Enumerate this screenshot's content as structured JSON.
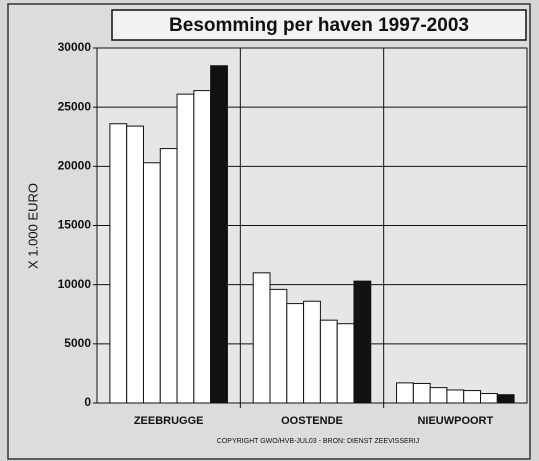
{
  "chart_data": {
    "type": "bar",
    "title": "Besomming per haven 1997-2003",
    "y_label": "X 1.000 EURO",
    "footnote": "COPYRIGHT GWO/HVB-JUL03  -  BRON: DIENST ZEEVISSERIJ",
    "categories": [
      "ZEEBRUGGE",
      "OOSTENDE",
      "NIEUWPOORT"
    ],
    "series": [
      {
        "color": "#ffffff",
        "values": [
          23600,
          11000,
          1700
        ]
      },
      {
        "color": "#ffffff",
        "values": [
          23400,
          9600,
          1650
        ]
      },
      {
        "color": "#ffffff",
        "values": [
          20300,
          8400,
          1300
        ]
      },
      {
        "color": "#ffffff",
        "values": [
          21500,
          8600,
          1100
        ]
      },
      {
        "color": "#ffffff",
        "values": [
          26100,
          7000,
          1050
        ]
      },
      {
        "color": "#ffffff",
        "values": [
          26400,
          6700,
          800
        ]
      },
      {
        "color": "#111111",
        "values": [
          28500,
          10300,
          700
        ]
      }
    ],
    "ylim": [
      0,
      30000
    ],
    "yticks": [
      0,
      5000,
      10000,
      15000,
      20000,
      25000,
      30000
    ],
    "grid": true
  }
}
